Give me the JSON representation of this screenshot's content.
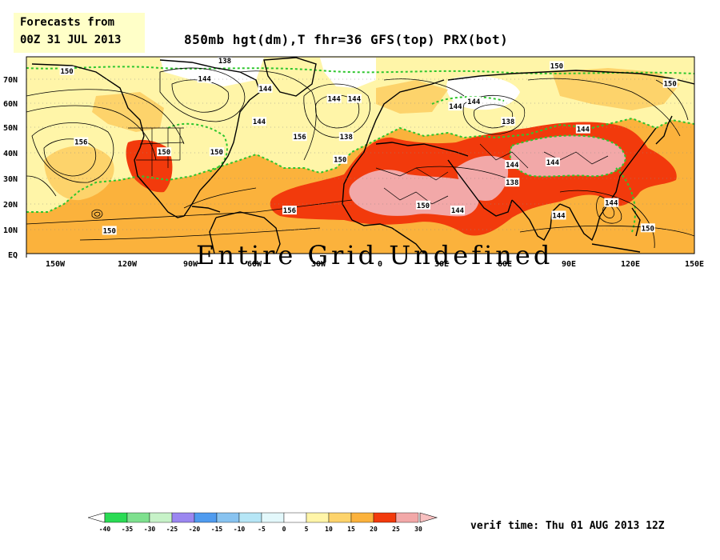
{
  "header": {
    "line1": "Forecasts from",
    "line2": "00Z 31 JUL 2013"
  },
  "map": {
    "title": "850mb hgt(dm),T  fhr=36  GFS(top)  PRX(bot)",
    "overlay_message": "Entire Grid Undefined",
    "lat_labels": [
      "70N",
      "60N",
      "50N",
      "40N",
      "30N",
      "20N",
      "10N",
      "EQ"
    ],
    "lon_labels": [
      "150W",
      "120W",
      "90W",
      "60W",
      "30W",
      "0",
      "30E",
      "60E",
      "90E",
      "120E",
      "150E"
    ],
    "contour_labels": [
      {
        "text": "150",
        "lon": -160,
        "lat": 72
      },
      {
        "text": "156",
        "lon": -153,
        "lat": 44
      },
      {
        "text": "150",
        "lon": -112,
        "lat": 40
      },
      {
        "text": "150",
        "lon": -86,
        "lat": 40
      },
      {
        "text": "138",
        "lon": -82,
        "lat": 76
      },
      {
        "text": "144",
        "lon": -92,
        "lat": 69
      },
      {
        "text": "144",
        "lon": -62,
        "lat": 65
      },
      {
        "text": "144",
        "lon": -65,
        "lat": 52
      },
      {
        "text": "156",
        "lon": -45,
        "lat": 46
      },
      {
        "text": "144",
        "lon": -28,
        "lat": 61
      },
      {
        "text": "144",
        "lon": -18,
        "lat": 61
      },
      {
        "text": "138",
        "lon": -22,
        "lat": 46
      },
      {
        "text": "150",
        "lon": -25,
        "lat": 37
      },
      {
        "text": "150",
        "lon": 16,
        "lat": 19
      },
      {
        "text": "144",
        "lon": 33,
        "lat": 17
      },
      {
        "text": "144",
        "lon": 32,
        "lat": 58
      },
      {
        "text": "144",
        "lon": 41,
        "lat": 60
      },
      {
        "text": "138",
        "lon": 58,
        "lat": 52
      },
      {
        "text": "144",
        "lon": 60,
        "lat": 35
      },
      {
        "text": "144",
        "lon": 80,
        "lat": 36
      },
      {
        "text": "138",
        "lon": 60,
        "lat": 28
      },
      {
        "text": "144",
        "lon": 95,
        "lat": 49
      },
      {
        "text": "150",
        "lon": 82,
        "lat": 74
      },
      {
        "text": "150",
        "lon": 138,
        "lat": 67
      },
      {
        "text": "150",
        "lon": 100,
        "lat": 80
      },
      {
        "text": "144",
        "lon": 109,
        "lat": 20
      },
      {
        "text": "144",
        "lon": 83,
        "lat": 15
      },
      {
        "text": "150",
        "lon": 127,
        "lat": 10
      },
      {
        "text": "156",
        "lon": -50,
        "lat": 17
      },
      {
        "text": "150",
        "lon": -139,
        "lat": 9
      }
    ]
  },
  "colorbar": {
    "ticks": [
      "-40",
      "-35",
      "-30",
      "-25",
      "-20",
      "-15",
      "-10",
      "-5",
      "0",
      "5",
      "10",
      "15",
      "20",
      "25",
      "30"
    ],
    "colors": [
      "#2adb54",
      "#7ee08e",
      "#c7f2c8",
      "#9b87f0",
      "#4f9bef",
      "#88c3f0",
      "#b6e6f6",
      "#e3f8fb",
      "#ffffff",
      "#fff5a8",
      "#fdd36b",
      "#fbb23c",
      "#f23a0c",
      "#f2a8a8"
    ],
    "low_end_color": "#ffffff",
    "high_end_color": "#f8c0c0"
  },
  "verif_time": "verif time: Thu 01 AUG 2013 12Z",
  "palette": {
    "warm_orange": "#fbb23c",
    "light_yellow": "#fff5a8",
    "yellow": "#fdd36b",
    "red": "#f23a0c",
    "pink": "#f2a8a8",
    "green_contour": "#2ec62e",
    "header_bg": "#ffffc8"
  }
}
